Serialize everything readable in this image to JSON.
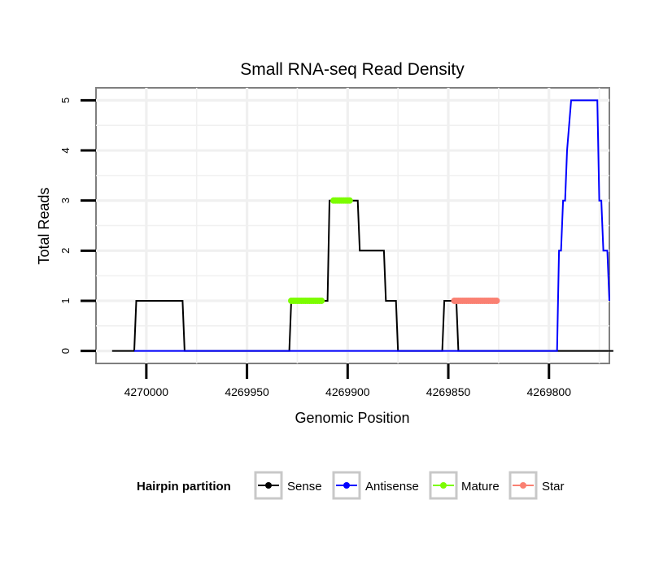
{
  "chart_data": {
    "type": "line",
    "title": "Small RNA-seq Read Density",
    "xlabel": "Genomic Position",
    "ylabel": "Total Reads",
    "xlim": [
      4270025,
      4269770
    ],
    "ylim": [
      -0.25,
      5.25
    ],
    "x_reversed": true,
    "grid": true,
    "x_ticks": [
      4270000,
      4269950,
      4269900,
      4269850,
      4269800
    ],
    "x_tick_labels": [
      "4270000",
      "4269950",
      "4269900",
      "4269850",
      "4269800"
    ],
    "y_ticks": [
      0,
      1,
      2,
      3,
      4,
      5
    ],
    "y_tick_labels": [
      "0",
      "1",
      "2",
      "3",
      "4",
      "5"
    ],
    "legend": {
      "title": "Hairpin partition",
      "position": "bottom",
      "entries": [
        {
          "label": "Sense",
          "color": "#000000"
        },
        {
          "label": "Antisense",
          "color": "#0000ff"
        },
        {
          "label": "Mature",
          "color": "#7cfc00"
        },
        {
          "label": "Star",
          "color": "#fa8072"
        }
      ]
    },
    "series": [
      {
        "name": "Sense",
        "color": "#000000",
        "style": "line",
        "x": [
          4270017,
          4270006,
          4270005,
          4269982,
          4269981,
          4269929,
          4269928,
          4269910,
          4269909,
          4269895,
          4269894,
          4269882,
          4269881,
          4269876,
          4269875,
          4269853,
          4269852,
          4269846,
          4269845,
          4269768
        ],
        "y": [
          0,
          0,
          1,
          1,
          0,
          0,
          1,
          1,
          3,
          3,
          2,
          2,
          1,
          1,
          0,
          0,
          1,
          1,
          0,
          0
        ]
      },
      {
        "name": "Antisense",
        "color": "#0000ff",
        "style": "line",
        "x": [
          4270006,
          4269796,
          4269795,
          4269794,
          4269793,
          4269792,
          4269791,
          4269789,
          4269788,
          4269776,
          4269775,
          4269774,
          4269773,
          4269771,
          4269770
        ],
        "y": [
          0,
          0,
          2,
          2,
          3,
          3,
          4,
          5,
          5,
          5,
          3,
          3,
          2,
          2,
          1
        ]
      },
      {
        "name": "Mature",
        "color": "#7cfc00",
        "style": "points",
        "segments": [
          {
            "x_start": 4269928,
            "x_end": 4269913,
            "y": 1
          },
          {
            "x_start": 4269907,
            "x_end": 4269899,
            "y": 3
          }
        ]
      },
      {
        "name": "Star",
        "color": "#fa8072",
        "style": "points",
        "segments": [
          {
            "x_start": 4269847,
            "x_end": 4269826,
            "y": 1
          }
        ]
      }
    ]
  }
}
